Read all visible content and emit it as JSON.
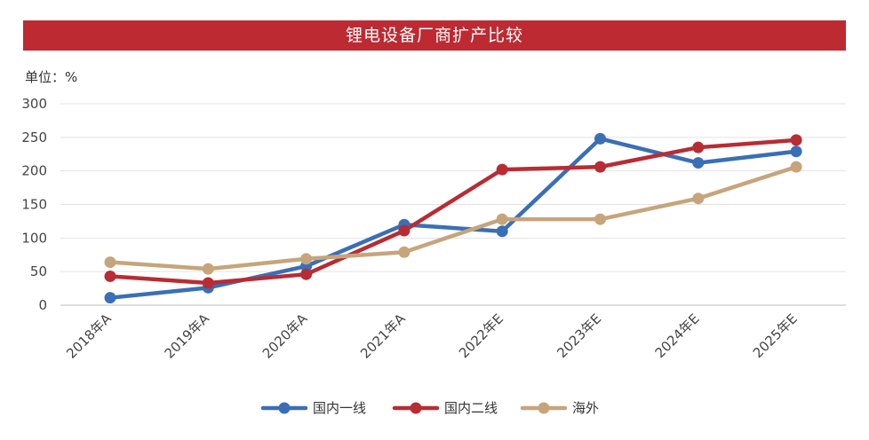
{
  "chart_data": {
    "type": "line",
    "title": "锂电设备厂商扩产比较",
    "unit_label": "单位：%",
    "categories": [
      "2018年A",
      "2019年A",
      "2020年A",
      "2021年A",
      "2022年E",
      "2023年E",
      "2024年E",
      "2025年E"
    ],
    "ylim": [
      0,
      300
    ],
    "yticks": [
      "0",
      "50",
      "100",
      "150",
      "200",
      "250",
      "300"
    ],
    "grid": true,
    "legend_position": "bottom",
    "series": [
      {
        "name": "国内一线",
        "color": "#3a6fb6",
        "values": [
          11,
          26,
          58,
          120,
          110,
          248,
          212,
          229
        ]
      },
      {
        "name": "国内二线",
        "color": "#b82c34",
        "values": [
          43,
          33,
          46,
          111,
          202,
          206,
          235,
          246
        ]
      },
      {
        "name": "海外",
        "color": "#c6a57c",
        "values": [
          64,
          54,
          69,
          79,
          128,
          128,
          159,
          206
        ]
      }
    ]
  }
}
